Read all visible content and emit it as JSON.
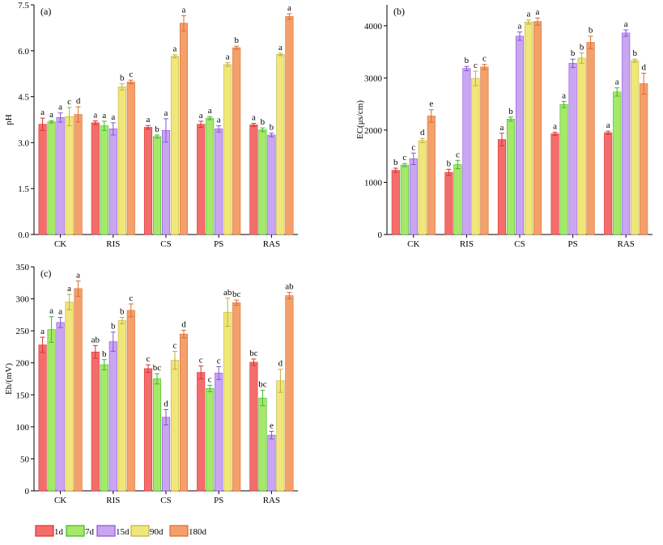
{
  "legend": {
    "items": [
      {
        "label": "1d",
        "color": "#f46d6d"
      },
      {
        "label": "7d",
        "color": "#a6e86a"
      },
      {
        "label": "15d",
        "color": "#c9a5f2"
      },
      {
        "label": "90d",
        "color": "#f0e67a"
      },
      {
        "label": "180d",
        "color": "#f4a06b"
      }
    ]
  },
  "chart_data": [
    {
      "type": "bar",
      "panel_label": "(a)",
      "ylabel": "pH",
      "xlabel": "",
      "categories": [
        "CK",
        "RIS",
        "CS",
        "PS",
        "RAS"
      ],
      "ylim": [
        0,
        7.5
      ],
      "yticks": [
        "0.0",
        "1.5",
        "3.0",
        "4.5",
        "6.0",
        "7.5"
      ],
      "ytick_values": [
        0,
        1.5,
        3,
        4.5,
        6,
        7.5
      ],
      "series": [
        {
          "name": "1d",
          "values": [
            3.6,
            3.65,
            3.5,
            3.6,
            3.58
          ],
          "errors": [
            0.2,
            0.06,
            0.06,
            0.1,
            0.05
          ],
          "labels": [
            "a",
            "a",
            "a",
            "a",
            "a"
          ]
        },
        {
          "name": "7d",
          "values": [
            3.68,
            3.55,
            3.2,
            3.8,
            3.42
          ],
          "errors": [
            0.04,
            0.15,
            0.05,
            0.05,
            0.06
          ],
          "labels": [
            "a",
            "a",
            "b",
            "a",
            "b"
          ]
        },
        {
          "name": "15d",
          "values": [
            3.82,
            3.45,
            3.4,
            3.45,
            3.25
          ],
          "errors": [
            0.15,
            0.2,
            0.38,
            0.1,
            0.06
          ],
          "labels": [
            "a",
            "a",
            "a",
            "a",
            "b"
          ]
        },
        {
          "name": "90d",
          "values": [
            3.85,
            4.82,
            5.82,
            5.55,
            5.88
          ],
          "errors": [
            0.3,
            0.1,
            0.05,
            0.06,
            0.04
          ],
          "labels": [
            "c",
            "b",
            "a",
            "a",
            "a"
          ]
        },
        {
          "name": "180d",
          "values": [
            3.92,
            4.98,
            6.9,
            6.1,
            7.12
          ],
          "errors": [
            0.25,
            0.06,
            0.25,
            0.05,
            0.09
          ],
          "labels": [
            "d",
            "c",
            "a",
            "b",
            "a"
          ]
        }
      ]
    },
    {
      "type": "bar",
      "panel_label": "(b)",
      "ylabel": "EC(μs/cm)",
      "xlabel": "",
      "categories": [
        "CK",
        "RIS",
        "CS",
        "PS",
        "RAS"
      ],
      "ylim": [
        0,
        4400
      ],
      "yticks": [
        "0",
        "1000",
        "2000",
        "3000",
        "4000"
      ],
      "ytick_values": [
        0,
        1000,
        2000,
        3000,
        4000
      ],
      "series": [
        {
          "name": "1d",
          "values": [
            1230,
            1190,
            1820,
            1930,
            1950
          ],
          "errors": [
            40,
            60,
            120,
            30,
            30
          ],
          "labels": [
            "b",
            "b",
            "a",
            "a",
            "a"
          ]
        },
        {
          "name": "7d",
          "values": [
            1330,
            1340,
            2210,
            2490,
            2730
          ],
          "errors": [
            30,
            80,
            40,
            60,
            80
          ],
          "labels": [
            "c",
            "c",
            "b",
            "a",
            "a"
          ]
        },
        {
          "name": "15d",
          "values": [
            1450,
            3180,
            3800,
            3280,
            3860
          ],
          "errors": [
            110,
            40,
            80,
            80,
            60
          ],
          "labels": [
            "c",
            "b",
            "a",
            "b",
            "a"
          ]
        },
        {
          "name": "90d",
          "values": [
            1800,
            2990,
            4070,
            3380,
            3330
          ],
          "errors": [
            40,
            140,
            40,
            100,
            30
          ],
          "labels": [
            "d",
            "c",
            "a",
            "b",
            "b"
          ]
        },
        {
          "name": "180d",
          "values": [
            2270,
            3210,
            4080,
            3680,
            2890
          ],
          "errors": [
            120,
            50,
            70,
            120,
            200
          ],
          "labels": [
            "e",
            "c",
            "a",
            "b",
            "d"
          ]
        }
      ]
    },
    {
      "type": "bar",
      "panel_label": "(c)",
      "ylabel": "Eh/(mV)",
      "xlabel": "",
      "categories": [
        "CK",
        "RIS",
        "CS",
        "PS",
        "RAS"
      ],
      "ylim": [
        0,
        350
      ],
      "yticks": [
        "0",
        "50",
        "100",
        "150",
        "200",
        "250",
        "300",
        "350"
      ],
      "ytick_values": [
        0,
        50,
        100,
        150,
        200,
        250,
        300,
        350
      ],
      "series": [
        {
          "name": "1d",
          "values": [
            228,
            217,
            191,
            185,
            201
          ],
          "errors": [
            12,
            10,
            6,
            10,
            5
          ],
          "labels": [
            "a",
            "ab",
            "c",
            "c",
            "bc"
          ]
        },
        {
          "name": "7d",
          "values": [
            252,
            197,
            175,
            160,
            145
          ],
          "errors": [
            20,
            8,
            8,
            5,
            12
          ],
          "labels": [
            "a",
            "b",
            "bc",
            "c",
            "bc"
          ]
        },
        {
          "name": "15d",
          "values": [
            263,
            233,
            115,
            184,
            87
          ],
          "errors": [
            8,
            15,
            12,
            10,
            6
          ],
          "labels": [
            "a",
            "b",
            "d",
            "c",
            "e"
          ]
        },
        {
          "name": "90d",
          "values": [
            295,
            266,
            204,
            279,
            172
          ],
          "errors": [
            12,
            5,
            14,
            22,
            18
          ],
          "labels": [
            "a",
            "b",
            "c",
            "ab",
            "d"
          ]
        },
        {
          "name": "180d",
          "values": [
            316,
            282,
            245,
            294,
            305
          ],
          "errors": [
            12,
            10,
            6,
            4,
            5
          ],
          "labels": [
            "a",
            "c",
            "d",
            "bc",
            "ab"
          ]
        }
      ]
    }
  ]
}
